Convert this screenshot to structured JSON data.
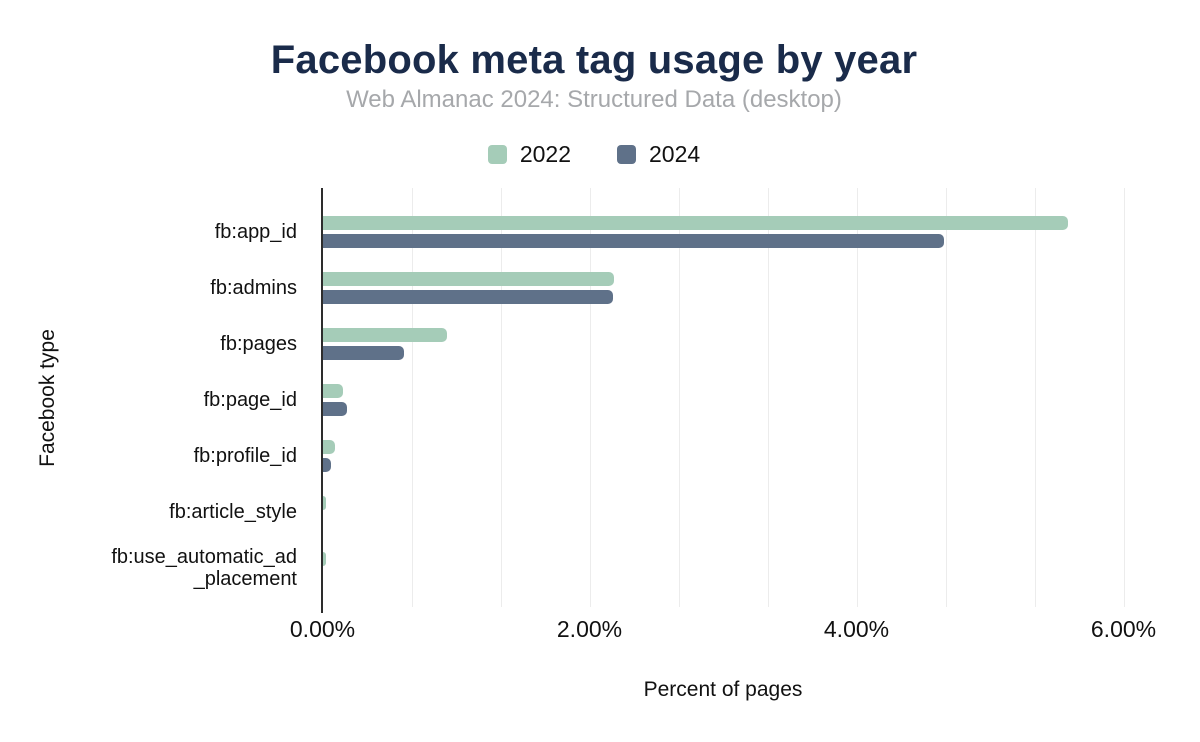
{
  "colors": {
    "title": "#1a2b4a",
    "subtitle": "#a6a8ab",
    "text": "#111111",
    "axis_line": "#2d2d2d",
    "gridline": "#ececec",
    "background": "#ffffff",
    "series_2022": "#a5ccb8",
    "series_2024": "#5f7189"
  },
  "chart_data": {
    "type": "bar",
    "orientation": "horizontal",
    "title": "Facebook meta tag usage by year",
    "subtitle": "Web Almanac 2024: Structured Data (desktop)",
    "xlabel": "Percent of pages",
    "ylabel": "Facebook type",
    "categories": [
      "fb:app_id",
      "fb:admins",
      "fb:pages",
      "fb:page_id",
      "fb:profile_id",
      "fb:article_style",
      "fb:use_automatic_ad\n_placement"
    ],
    "series": [
      {
        "name": "2022",
        "color": "#a5ccb8",
        "values": [
          5.58,
          2.18,
          0.93,
          0.15,
          0.09,
          0.02,
          0.02
        ]
      },
      {
        "name": "2024",
        "color": "#5f7189",
        "values": [
          4.65,
          2.17,
          0.61,
          0.18,
          0.06,
          0.0,
          0.0
        ]
      }
    ],
    "xlim": [
      0,
      6
    ],
    "x_ticks": [
      {
        "value": 0,
        "label": "0.00%"
      },
      {
        "value": 2,
        "label": "2.00%"
      },
      {
        "value": 4,
        "label": "4.00%"
      },
      {
        "value": 6,
        "label": "6.00%"
      }
    ],
    "minor_gridline_step_percent": 0.6667,
    "grid": true,
    "legend_position": "top"
  }
}
